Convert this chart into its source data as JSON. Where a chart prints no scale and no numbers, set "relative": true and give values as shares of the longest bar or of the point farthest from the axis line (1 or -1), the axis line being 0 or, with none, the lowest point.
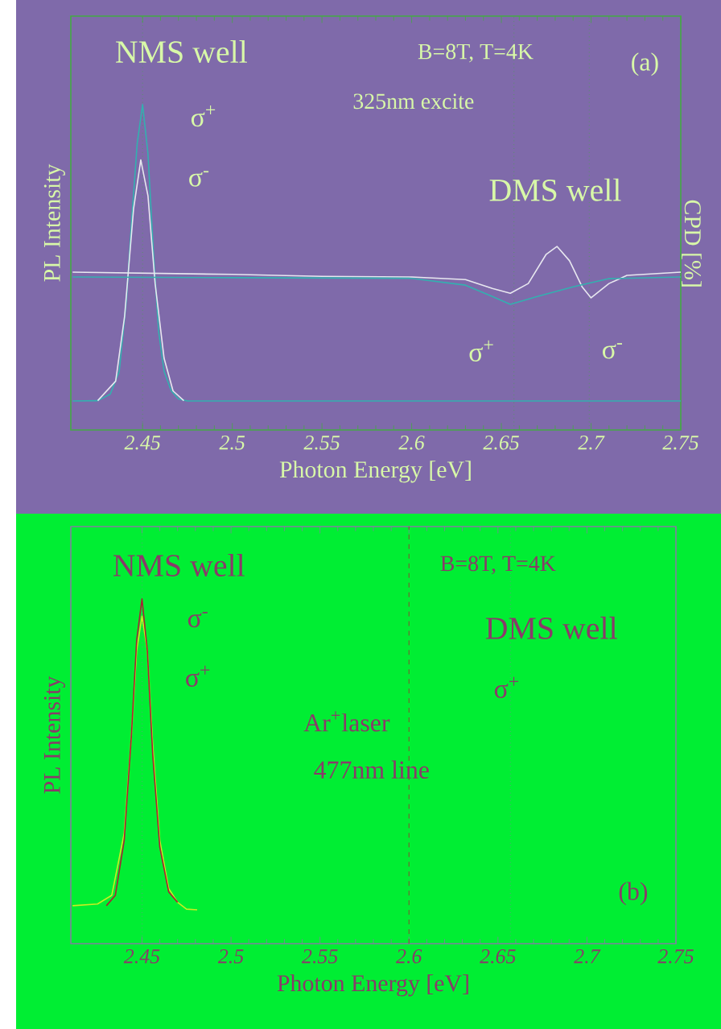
{
  "chart_data": [
    {
      "type": "line",
      "xlabel": "Photon Energy [eV]",
      "ylabel": "PL Intensity",
      "y2label": "CPD [%]",
      "relative": true,
      "xlim": [
        2.41,
        2.75
      ],
      "xticks": [
        2.45,
        2.5,
        2.55,
        2.6,
        2.65,
        2.7,
        2.75
      ],
      "series": [
        {
          "color": "#33b0b0",
          "x": [
            2.411,
            2.425,
            2.432,
            2.437,
            2.441,
            2.444,
            2.447,
            2.45,
            2.453,
            2.456,
            2.459,
            2.462,
            2.466,
            2.47,
            2.475,
            2.6,
            2.75
          ],
          "values": [
            0.089,
            0.09,
            0.11,
            0.18,
            0.4,
            0.65,
            0.88,
            1.0,
            0.85,
            0.55,
            0.3,
            0.18,
            0.12,
            0.095,
            0.089,
            0.089,
            0.089
          ]
        },
        {
          "color": "#e8e8f0",
          "x": [
            2.425,
            2.435,
            2.44,
            2.445,
            2.449,
            2.453,
            2.457,
            2.462,
            2.467,
            2.473
          ],
          "values": [
            0.09,
            0.15,
            0.35,
            0.68,
            0.83,
            0.72,
            0.45,
            0.22,
            0.12,
            0.09
          ]
        },
        {
          "color": "#e8e8f0",
          "x": [
            2.411,
            2.5,
            2.55,
            2.6,
            2.63,
            2.645,
            2.655,
            2.665,
            2.675,
            2.681,
            2.688,
            2.695,
            2.7,
            2.71,
            2.72,
            2.75
          ],
          "values": [
            0.485,
            0.478,
            0.472,
            0.47,
            0.462,
            0.435,
            0.42,
            0.45,
            0.54,
            0.564,
            0.52,
            0.44,
            0.406,
            0.45,
            0.475,
            0.485
          ]
        },
        {
          "color": "#33b0b0",
          "x": [
            2.411,
            2.5,
            2.6,
            2.63,
            2.645,
            2.655,
            2.67,
            2.69,
            2.71,
            2.75
          ],
          "values": [
            0.47,
            0.468,
            0.466,
            0.445,
            0.41,
            0.386,
            0.41,
            0.44,
            0.465,
            0.47
          ]
        }
      ],
      "ref_lines": [
        {
          "axis": "x",
          "value": 2.45,
          "color": "#44aa44",
          "line_style": "dotted"
        },
        {
          "axis": "x",
          "value": 2.657,
          "color": "#44aa44",
          "line_style": "dotted"
        },
        {
          "axis": "x",
          "value": 2.699,
          "color": "#44aa44",
          "line_style": "dotted"
        }
      ],
      "annotations": [
        "NMS well",
        "B=8T, T=4K",
        "325nm excite",
        "(a)",
        "σ$^{+}$",
        "σ$^{-}$",
        "DMS well",
        "σ$^{+}$",
        "σ$^{-}$"
      ]
    },
    {
      "type": "line",
      "xlabel": "Photon Energy [eV]",
      "ylabel": "PL Intensity",
      "relative": true,
      "xlim": [
        2.41,
        2.75
      ],
      "xticks": [
        2.45,
        2.5,
        2.55,
        2.6,
        2.65,
        2.7,
        2.75
      ],
      "series": [
        {
          "color": "#c8ee22",
          "x": [
            2.411,
            2.425,
            2.433,
            2.44,
            2.444,
            2.447,
            2.45,
            2.453,
            2.456,
            2.46,
            2.465,
            2.47,
            2.475,
            2.481
          ],
          "values": [
            0.11,
            0.115,
            0.14,
            0.32,
            0.6,
            0.85,
            0.95,
            0.85,
            0.58,
            0.3,
            0.16,
            0.12,
            0.1,
            0.098
          ]
        },
        {
          "color": "#aa2233",
          "x": [
            2.43,
            2.435,
            2.44,
            2.444,
            2.447,
            2.45,
            2.453,
            2.456,
            2.46,
            2.465,
            2.47
          ],
          "values": [
            0.11,
            0.14,
            0.3,
            0.6,
            0.88,
            1.0,
            0.85,
            0.55,
            0.28,
            0.15,
            0.12
          ]
        }
      ],
      "ref_lines": [
        {
          "axis": "x",
          "value": 2.45,
          "color": "#8080a0",
          "line_style": "dotted"
        },
        {
          "axis": "x",
          "value": 2.6,
          "color": "#aa2233",
          "line_style": "dashed"
        },
        {
          "axis": "x",
          "value": 2.657,
          "color": "#8080a0",
          "line_style": "dotted"
        }
      ],
      "annotations": [
        "NMS well",
        "B=8T, T=4K",
        "σ$^{-}$",
        "σ$^{+}$",
        "DMS well",
        "σ$^{+}$",
        "Ar$^{+}$laser",
        "477nm line",
        "(b)"
      ]
    }
  ]
}
